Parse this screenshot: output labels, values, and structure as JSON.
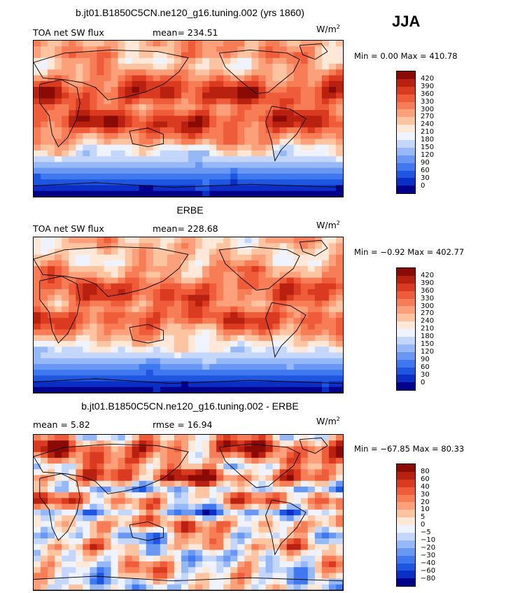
{
  "season": "JJA",
  "units_base": "W/m",
  "units_exp": "2",
  "colorbar_colors": [
    "#00008a",
    "#0b2fc4",
    "#1f56e0",
    "#3f78ef",
    "#6a97f4",
    "#96b8f7",
    "#c4d7fb",
    "#eef3ff",
    "#ffe8d8",
    "#fdc4a2",
    "#fba07a",
    "#f77d57",
    "#ef5c3a",
    "#d93a20",
    "#b8200f",
    "#8a0a05"
  ],
  "chart_data": [
    {
      "type": "heatmap",
      "title": "b.jt01.B1850C5CN.ne120_g16.tuning.002 (yrs 1860)",
      "left_label": "TOA net SW flux",
      "stat_label": "mean= 234.51",
      "minmax": "Min =   0.00 Max = 410.78",
      "levels": [
        "420",
        "390",
        "360",
        "330",
        "300",
        "270",
        "240",
        "210",
        "180",
        "150",
        "120",
        "90",
        "60",
        "30",
        "0"
      ],
      "profile": [
        10,
        10,
        10,
        9,
        9,
        10,
        11,
        12,
        13,
        13,
        12,
        11,
        12,
        13,
        13,
        12,
        11,
        10,
        8,
        7,
        6,
        5,
        4,
        3,
        2,
        1,
        0
      ]
    },
    {
      "type": "heatmap",
      "title": "ERBE",
      "left_label": "TOA net SW flux",
      "stat_label": "mean= 228.68",
      "minmax": "Min =  −0.92 Max = 402.77",
      "levels": [
        "420",
        "390",
        "360",
        "330",
        "300",
        "270",
        "240",
        "210",
        "180",
        "150",
        "120",
        "90",
        "60",
        "30",
        "0"
      ],
      "profile": [
        9,
        9,
        9,
        9,
        9,
        10,
        10,
        11,
        12,
        12,
        12,
        11,
        11,
        12,
        12,
        11,
        10,
        9,
        8,
        7,
        6,
        5,
        4,
        3,
        2,
        1,
        0
      ]
    },
    {
      "type": "heatmap",
      "title": "b.jt01.B1850C5CN.ne120_g16.tuning.002 - ERBE",
      "left_label": "mean =    5.82",
      "stat_label": "rmse =   16.94",
      "minmax": "Min = −67.85 Max =  80.33",
      "levels": [
        "80",
        "60",
        "40",
        "30",
        "20",
        "10",
        "5",
        "0",
        "−5",
        "−10",
        "−20",
        "−30",
        "−40",
        "−60",
        "−80"
      ],
      "profile": [
        9,
        11,
        12,
        11,
        10,
        9,
        11,
        12,
        9,
        6,
        9,
        10,
        8,
        5,
        8,
        10,
        9,
        7,
        8,
        9,
        7,
        7,
        8,
        8,
        8,
        7,
        7
      ]
    }
  ]
}
